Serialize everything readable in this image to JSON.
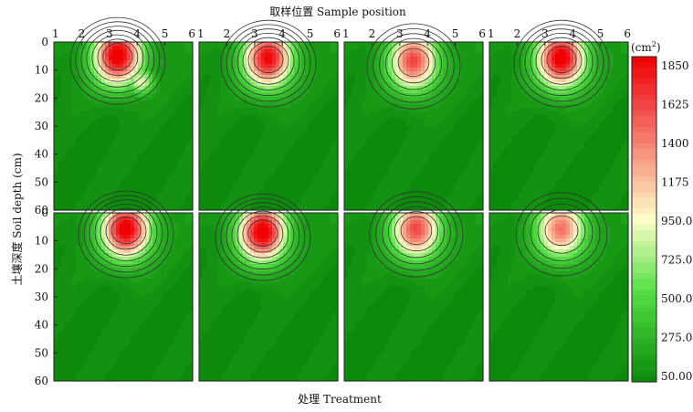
{
  "chart_data": {
    "type": "heatmap",
    "title": "",
    "top_axis_label": "取样位置 Sample position",
    "xlabel": "处理 Treatment",
    "ylabel": "土壤深度 Soil depth (cm)",
    "x_ticks": [
      "1",
      "2",
      "3",
      "4",
      "5",
      "6"
    ],
    "y_ticks": [
      "0",
      "10",
      "20",
      "30",
      "40",
      "50",
      "60"
    ],
    "xlim": [
      1,
      6
    ],
    "ylim": [
      0,
      60
    ],
    "y_inverted": true,
    "colorbar": {
      "unit_base": "(cm",
      "unit_sup": "2",
      "unit_end": ")",
      "ticks": [
        "1850",
        "1625",
        "1400",
        "1175",
        "950.0",
        "725.0",
        "500.0",
        "275.0",
        "50.00"
      ],
      "min": 50,
      "max": 1850,
      "colors_low_to_high": [
        "#0b8a0b",
        "#55e045",
        "#fdfdc8",
        "#f24646",
        "#f00000"
      ]
    },
    "panels": [
      {
        "row": 1,
        "col": 1,
        "peak_value": 1850,
        "peak_position": 3.3,
        "peak_depth": 5,
        "hotspot": {
          "x": 4.1,
          "depth": 14,
          "value": 900
        }
      },
      {
        "row": 1,
        "col": 2,
        "peak_value": 1750,
        "peak_position": 3.5,
        "peak_depth": 6,
        "hotspot": null
      },
      {
        "row": 1,
        "col": 3,
        "peak_value": 1500,
        "peak_position": 3.5,
        "peak_depth": 7,
        "hotspot": null
      },
      {
        "row": 1,
        "col": 4,
        "peak_value": 1850,
        "peak_position": 3.6,
        "peak_depth": 6,
        "hotspot": null
      },
      {
        "row": 2,
        "col": 1,
        "peak_value": 1850,
        "peak_position": 3.6,
        "peak_depth": 6,
        "hotspot": null
      },
      {
        "row": 2,
        "col": 2,
        "peak_value": 1850,
        "peak_position": 3.3,
        "peak_depth": 7,
        "hotspot": null
      },
      {
        "row": 2,
        "col": 3,
        "peak_value": 1500,
        "peak_position": 3.6,
        "peak_depth": 6,
        "hotspot": null
      },
      {
        "row": 2,
        "col": 4,
        "peak_value": 1350,
        "peak_position": 3.6,
        "peak_depth": 6,
        "hotspot": null
      }
    ]
  }
}
